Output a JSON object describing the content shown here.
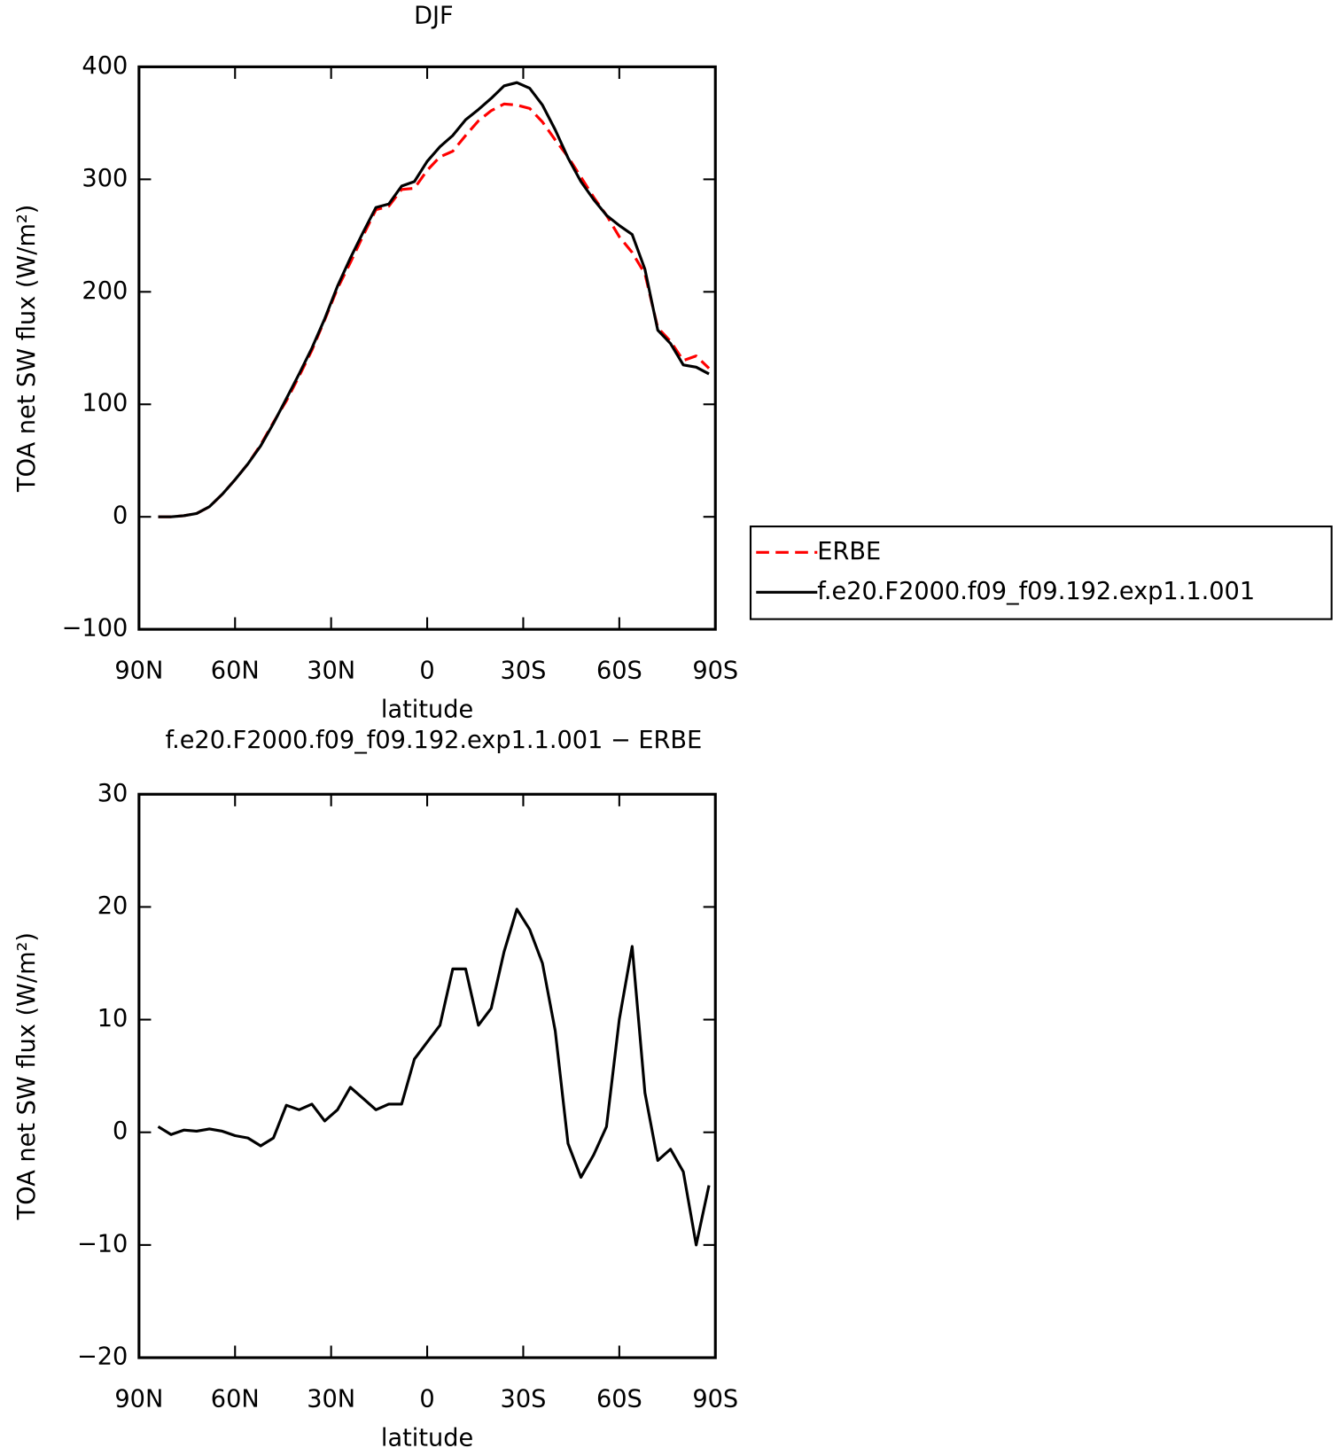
{
  "chart_data": [
    {
      "type": "line",
      "title": "DJF",
      "xlabel": "latitude",
      "ylabel": "TOA net SW flux (W/m²)",
      "x": [
        84,
        80,
        76,
        72,
        68,
        64,
        60,
        56,
        52,
        48,
        44,
        40,
        36,
        32,
        28,
        24,
        20,
        16,
        12,
        8,
        4,
        0,
        -4,
        -8,
        -12,
        -16,
        -20,
        -24,
        -28,
        -32,
        -36,
        -40,
        -44,
        -48,
        -52,
        -56,
        -60,
        -64,
        -68,
        -72,
        -76,
        -80,
        -84,
        -88
      ],
      "series": [
        {
          "name": "ERBE",
          "color": "#ff0000",
          "dash": "dashed",
          "values": [
            0,
            0,
            1,
            3,
            9,
            20,
            33,
            47,
            64,
            84,
            103,
            125,
            148,
            175,
            203,
            226,
            250,
            273,
            276,
            291,
            292,
            308,
            320,
            325,
            339,
            352,
            361,
            367,
            366,
            363,
            351,
            335,
            320,
            302,
            284,
            268,
            249,
            235,
            216,
            168,
            156,
            139,
            143,
            132
          ]
        },
        {
          "name": "f.e20.F2000.f09_f09.192.exp1.1.001",
          "color": "#000000",
          "dash": "solid",
          "values": [
            0,
            0,
            1,
            3,
            9,
            20,
            33,
            47,
            63,
            83,
            105,
            127,
            150,
            176,
            205,
            230,
            253,
            275,
            278,
            294,
            298,
            316,
            329,
            339,
            353,
            362,
            372,
            383,
            386,
            381,
            366,
            344,
            319,
            298,
            282,
            268,
            259,
            251,
            220,
            166,
            154,
            135,
            133,
            127
          ]
        }
      ],
      "xlim": [
        90,
        -90
      ],
      "xticks": [
        {
          "value": 90,
          "label": "90N"
        },
        {
          "value": 60,
          "label": "60N"
        },
        {
          "value": 30,
          "label": "30N"
        },
        0,
        {
          "value": -30,
          "label": "30S"
        },
        {
          "value": -60,
          "label": "60S"
        },
        {
          "value": -90,
          "label": "90S"
        }
      ],
      "ylim": [
        -100,
        400
      ],
      "yticks": [
        {
          "value": -100,
          "label": "−100"
        },
        0,
        100,
        200,
        300,
        400
      ],
      "legend": "right"
    },
    {
      "type": "line",
      "title": "f.e20.F2000.f09_f09.192.exp1.1.001 − ERBE",
      "xlabel": "latitude",
      "ylabel": "TOA net SW flux (W/m²)",
      "x": [
        84,
        80,
        76,
        72,
        68,
        64,
        60,
        56,
        52,
        48,
        44,
        40,
        36,
        32,
        28,
        24,
        20,
        16,
        12,
        8,
        4,
        0,
        -4,
        -8,
        -12,
        -16,
        -20,
        -24,
        -28,
        -32,
        -36,
        -40,
        -44,
        -48,
        -52,
        -56,
        -60,
        -64,
        -68,
        -72,
        -76,
        -80,
        -84,
        -88
      ],
      "series": [
        {
          "color": "#000000",
          "dash": "solid",
          "values": [
            0.5,
            -0.2,
            0.2,
            0.1,
            0.3,
            0.1,
            -0.3,
            -0.5,
            -1.2,
            -0.5,
            2.4,
            2.0,
            2.5,
            1.0,
            2.0,
            4.0,
            3.0,
            2.0,
            2.5,
            2.5,
            6.5,
            8.0,
            9.5,
            14.5,
            14.5,
            9.5,
            11,
            16,
            19.8,
            18,
            15,
            9,
            -1,
            -4,
            -2,
            0.5,
            10,
            16.5,
            3.5,
            -2.5,
            -1.5,
            -3.5,
            -10,
            -4.7
          ]
        }
      ],
      "xlim": [
        90,
        -90
      ],
      "xticks": [
        {
          "value": 90,
          "label": "90N"
        },
        {
          "value": 60,
          "label": "60N"
        },
        {
          "value": 30,
          "label": "30N"
        },
        0,
        {
          "value": -30,
          "label": "30S"
        },
        {
          "value": -60,
          "label": "60S"
        },
        {
          "value": -90,
          "label": "90S"
        }
      ],
      "ylim": [
        -20,
        30
      ],
      "yticks": [
        {
          "value": -20,
          "label": "−20"
        },
        {
          "value": -10,
          "label": "−10"
        },
        0,
        10,
        20,
        30
      ]
    }
  ]
}
